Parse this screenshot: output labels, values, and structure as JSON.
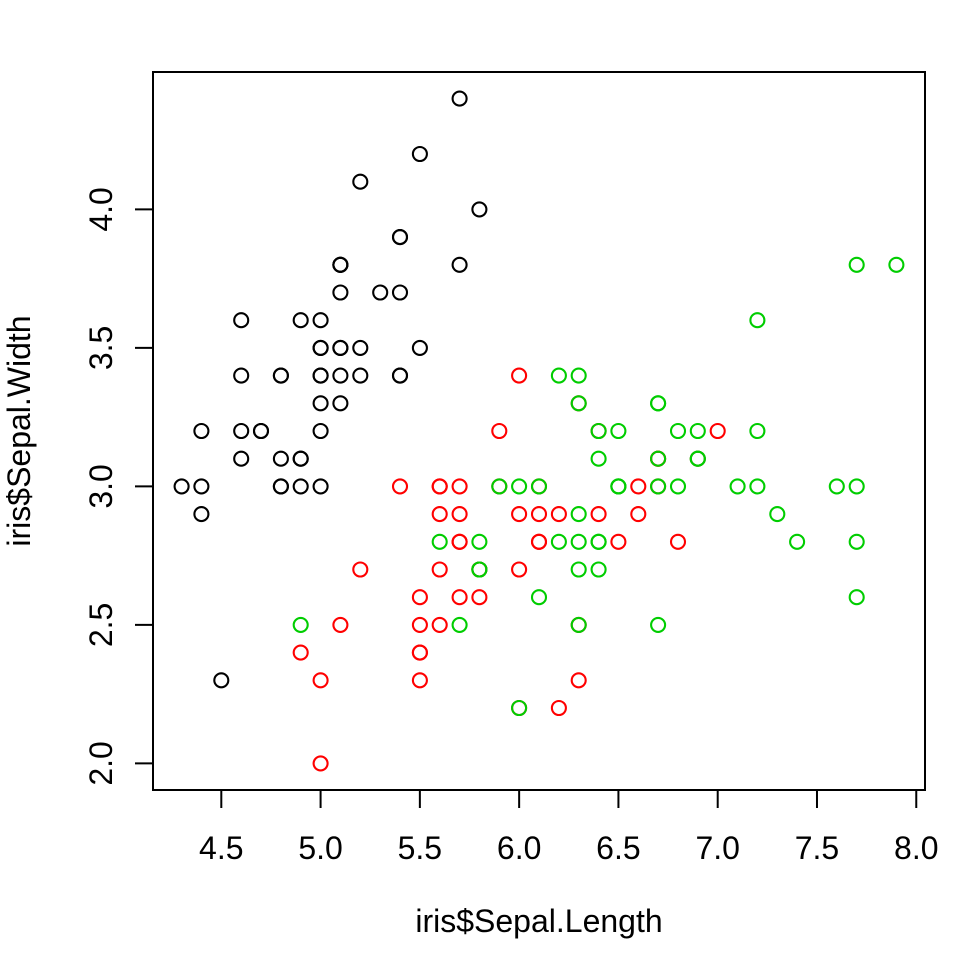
{
  "figure": {
    "background_color": "#FFFFFF",
    "axis_color": "#000000",
    "text_color": "#000000"
  },
  "chart_data": {
    "type": "scatter",
    "title": "",
    "xlabel": "iris$Sepal.Length",
    "ylabel": "iris$Sepal.Width",
    "marker": "open-circle",
    "grid": false,
    "legend": "none",
    "x_range": [
      4.156,
      8.044
    ],
    "y_range": [
      1.904,
      4.496
    ],
    "x_ticks": [
      4.5,
      5.0,
      5.5,
      6.0,
      6.5,
      7.0,
      7.5,
      8.0
    ],
    "y_ticks": [
      2.0,
      2.5,
      3.0,
      3.5,
      4.0
    ],
    "x_tick_labels": [
      "4.5",
      "5.0",
      "5.5",
      "6.0",
      "6.5",
      "7.0",
      "7.5",
      "8.0"
    ],
    "y_tick_labels": [
      "2.0",
      "2.5",
      "3.0",
      "3.5",
      "4.0"
    ],
    "series": [
      {
        "name": "black-circles",
        "color": "#000000",
        "points": [
          [
            5.1,
            3.5
          ],
          [
            4.9,
            3.0
          ],
          [
            4.7,
            3.2
          ],
          [
            4.6,
            3.1
          ],
          [
            5.0,
            3.6
          ],
          [
            5.4,
            3.9
          ],
          [
            4.6,
            3.4
          ],
          [
            5.0,
            3.4
          ],
          [
            4.4,
            2.9
          ],
          [
            4.9,
            3.1
          ],
          [
            5.4,
            3.7
          ],
          [
            4.8,
            3.4
          ],
          [
            4.8,
            3.0
          ],
          [
            4.3,
            3.0
          ],
          [
            5.8,
            4.0
          ],
          [
            5.7,
            4.4
          ],
          [
            5.4,
            3.9
          ],
          [
            5.1,
            3.5
          ],
          [
            5.7,
            3.8
          ],
          [
            5.1,
            3.8
          ],
          [
            5.4,
            3.4
          ],
          [
            5.1,
            3.7
          ],
          [
            4.6,
            3.6
          ],
          [
            5.1,
            3.3
          ],
          [
            4.8,
            3.4
          ],
          [
            5.0,
            3.0
          ],
          [
            5.0,
            3.4
          ],
          [
            5.2,
            3.5
          ],
          [
            5.2,
            3.4
          ],
          [
            4.7,
            3.2
          ],
          [
            4.8,
            3.1
          ],
          [
            5.4,
            3.4
          ],
          [
            5.2,
            4.1
          ],
          [
            5.5,
            4.2
          ],
          [
            4.9,
            3.1
          ],
          [
            5.0,
            3.2
          ],
          [
            5.5,
            3.5
          ],
          [
            4.9,
            3.6
          ],
          [
            4.4,
            3.0
          ],
          [
            5.1,
            3.4
          ],
          [
            5.0,
            3.5
          ],
          [
            4.5,
            2.3
          ],
          [
            4.4,
            3.2
          ],
          [
            5.0,
            3.5
          ],
          [
            5.1,
            3.8
          ],
          [
            4.8,
            3.0
          ],
          [
            5.1,
            3.8
          ],
          [
            4.6,
            3.2
          ],
          [
            5.3,
            3.7
          ],
          [
            5.0,
            3.3
          ]
        ]
      },
      {
        "name": "red-circles",
        "color": "#FF0000",
        "points": [
          [
            7.0,
            3.2
          ],
          [
            6.4,
            3.2
          ],
          [
            6.9,
            3.1
          ],
          [
            5.5,
            2.3
          ],
          [
            6.5,
            2.8
          ],
          [
            5.7,
            2.8
          ],
          [
            6.3,
            3.3
          ],
          [
            4.9,
            2.4
          ],
          [
            6.6,
            2.9
          ],
          [
            5.2,
            2.7
          ],
          [
            5.0,
            2.0
          ],
          [
            5.9,
            3.0
          ],
          [
            6.0,
            2.2
          ],
          [
            6.1,
            2.9
          ],
          [
            5.6,
            2.9
          ],
          [
            6.7,
            3.1
          ],
          [
            5.6,
            3.0
          ],
          [
            5.8,
            2.7
          ],
          [
            6.2,
            2.2
          ],
          [
            5.6,
            2.5
          ],
          [
            5.9,
            3.2
          ],
          [
            6.1,
            2.8
          ],
          [
            6.3,
            2.5
          ],
          [
            6.1,
            2.8
          ],
          [
            6.4,
            2.9
          ],
          [
            6.6,
            3.0
          ],
          [
            6.8,
            2.8
          ],
          [
            6.7,
            3.0
          ],
          [
            6.0,
            2.9
          ],
          [
            5.7,
            2.6
          ],
          [
            5.5,
            2.4
          ],
          [
            5.5,
            2.4
          ],
          [
            5.8,
            2.7
          ],
          [
            6.0,
            2.7
          ],
          [
            5.4,
            3.0
          ],
          [
            6.0,
            3.4
          ],
          [
            6.7,
            3.1
          ],
          [
            6.3,
            2.3
          ],
          [
            5.6,
            3.0
          ],
          [
            5.5,
            2.5
          ],
          [
            5.5,
            2.6
          ],
          [
            6.1,
            3.0
          ],
          [
            5.8,
            2.6
          ],
          [
            5.0,
            2.3
          ],
          [
            5.6,
            2.7
          ],
          [
            5.7,
            3.0
          ],
          [
            5.7,
            2.9
          ],
          [
            6.2,
            2.9
          ],
          [
            5.1,
            2.5
          ],
          [
            5.7,
            2.8
          ]
        ]
      },
      {
        "name": "green-circles",
        "color": "#00CD00",
        "points": [
          [
            6.3,
            3.3
          ],
          [
            5.8,
            2.7
          ],
          [
            7.1,
            3.0
          ],
          [
            6.3,
            2.9
          ],
          [
            6.5,
            3.0
          ],
          [
            7.6,
            3.0
          ],
          [
            4.9,
            2.5
          ],
          [
            7.3,
            2.9
          ],
          [
            6.7,
            2.5
          ],
          [
            7.2,
            3.6
          ],
          [
            6.5,
            3.2
          ],
          [
            6.4,
            2.7
          ],
          [
            6.8,
            3.0
          ],
          [
            5.7,
            2.5
          ],
          [
            5.8,
            2.8
          ],
          [
            6.4,
            3.2
          ],
          [
            6.5,
            3.0
          ],
          [
            7.7,
            3.8
          ],
          [
            7.7,
            2.6
          ],
          [
            6.0,
            2.2
          ],
          [
            6.9,
            3.2
          ],
          [
            5.6,
            2.8
          ],
          [
            7.7,
            2.8
          ],
          [
            6.3,
            2.7
          ],
          [
            6.7,
            3.3
          ],
          [
            7.2,
            3.2
          ],
          [
            6.2,
            2.8
          ],
          [
            6.1,
            3.0
          ],
          [
            6.4,
            2.8
          ],
          [
            7.2,
            3.0
          ],
          [
            7.4,
            2.8
          ],
          [
            7.9,
            3.8
          ],
          [
            6.4,
            2.8
          ],
          [
            6.3,
            2.8
          ],
          [
            6.1,
            2.6
          ],
          [
            7.7,
            3.0
          ],
          [
            6.3,
            3.4
          ],
          [
            6.4,
            3.1
          ],
          [
            6.0,
            3.0
          ],
          [
            6.9,
            3.1
          ],
          [
            6.7,
            3.1
          ],
          [
            6.9,
            3.1
          ],
          [
            5.8,
            2.7
          ],
          [
            6.8,
            3.2
          ],
          [
            6.7,
            3.3
          ],
          [
            6.7,
            3.0
          ],
          [
            6.3,
            2.5
          ],
          [
            6.5,
            3.0
          ],
          [
            6.2,
            3.4
          ],
          [
            5.9,
            3.0
          ]
        ]
      }
    ]
  }
}
